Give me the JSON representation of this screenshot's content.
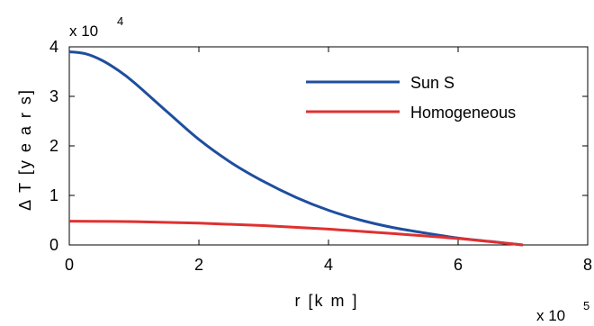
{
  "chart_data": {
    "type": "line",
    "xlabel": "r [k m   ]",
    "ylabel": "Δ T   [y e a r s]",
    "x_multiplier": {
      "base": "x 10",
      "exp": "5"
    },
    "y_multiplier": {
      "base": "x 10",
      "exp": "4"
    },
    "xlim": [
      0,
      800000
    ],
    "ylim": [
      0,
      40000
    ],
    "xticks": [
      0,
      200000,
      400000,
      600000,
      800000
    ],
    "xtick_labels": [
      "0",
      "2",
      "4",
      "6",
      "8"
    ],
    "yticks": [
      0,
      10000,
      20000,
      30000,
      40000
    ],
    "ytick_labels": [
      "0",
      "1",
      "2",
      "3",
      "4"
    ],
    "grid": false,
    "legend_position": "top-right",
    "series": [
      {
        "name": "Sun S",
        "color": "#1f4e9e",
        "x": [
          0,
          25000,
          50000,
          75000,
          100000,
          150000,
          200000,
          250000,
          300000,
          350000,
          400000,
          450000,
          500000,
          550000,
          600000,
          650000,
          700000
        ],
        "y": [
          39000,
          38600,
          37300,
          35300,
          32800,
          27000,
          21300,
          16600,
          12800,
          9600,
          7000,
          5000,
          3500,
          2400,
          1400,
          700,
          0
        ]
      },
      {
        "name": "Homogeneous",
        "color": "#e03030",
        "x": [
          0,
          100000,
          200000,
          300000,
          400000,
          500000,
          600000,
          700000
        ],
        "y": [
          4800,
          4700,
          4400,
          3900,
          3200,
          2300,
          1300,
          0
        ]
      }
    ]
  }
}
